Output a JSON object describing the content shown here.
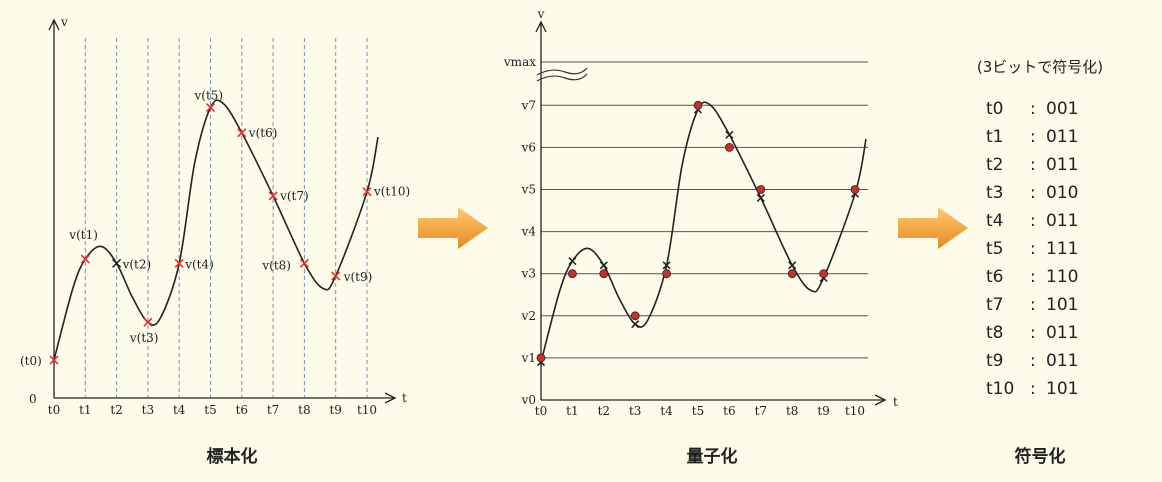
{
  "panels": {
    "sampling": {
      "y_axis_label": "v",
      "x_axis_label": "t",
      "origin_label": "0",
      "caption": "標本化",
      "t_labels": [
        "t0",
        "t1",
        "t2",
        "t3",
        "t4",
        "t5",
        "t6",
        "t7",
        "t8",
        "t9",
        "t10"
      ],
      "sample_labels": [
        "(t0)",
        "v(t1)",
        "v(t2)",
        "v(t3)",
        "v(t4)",
        "v(t5)",
        "v(t6)",
        "v(t7)",
        "v(t8)",
        "v(t9)",
        "v(t10)"
      ],
      "sample_values": [
        0.9,
        3.3,
        3.2,
        1.8,
        3.2,
        6.9,
        6.3,
        4.8,
        3.2,
        2.9,
        4.9
      ]
    },
    "quantization": {
      "y_axis_label": "v",
      "x_axis_label": "t",
      "caption": "量子化",
      "level_labels": [
        "v0",
        "v1",
        "v2",
        "v3",
        "v4",
        "v5",
        "v6",
        "v7",
        "vmax"
      ],
      "t_labels": [
        "t0",
        "t1",
        "t2",
        "t3",
        "t4",
        "t5",
        "t6",
        "t7",
        "t8",
        "t9",
        "t10"
      ],
      "quantized_levels": [
        1,
        3,
        3,
        2,
        3,
        7,
        6,
        5,
        3,
        3,
        5
      ]
    },
    "encoding": {
      "header": "(3ビットで符号化)",
      "caption": "符号化",
      "rows": [
        {
          "t": "t0",
          "sep": ": ",
          "code": "001"
        },
        {
          "t": "t1",
          "sep": ": ",
          "code": "011"
        },
        {
          "t": "t2",
          "sep": ": ",
          "code": "011"
        },
        {
          "t": "t3",
          "sep": ": ",
          "code": "010"
        },
        {
          "t": "t4",
          "sep": ": ",
          "code": "011"
        },
        {
          "t": "t5",
          "sep": ": ",
          "code": "111"
        },
        {
          "t": "t6",
          "sep": ": ",
          "code": "110"
        },
        {
          "t": "t7",
          "sep": ": ",
          "code": "101"
        },
        {
          "t": "t8",
          "sep": ": ",
          "code": "011"
        },
        {
          "t": "t9",
          "sep": ": ",
          "code": "011"
        },
        {
          "t": "t10",
          "sep": ": ",
          "code": "101"
        }
      ]
    }
  },
  "colors": {
    "arrow": "#f0a030",
    "sample_marker": "#e03030",
    "quant_dot": "#c83030",
    "background": "#fdfbea"
  }
}
